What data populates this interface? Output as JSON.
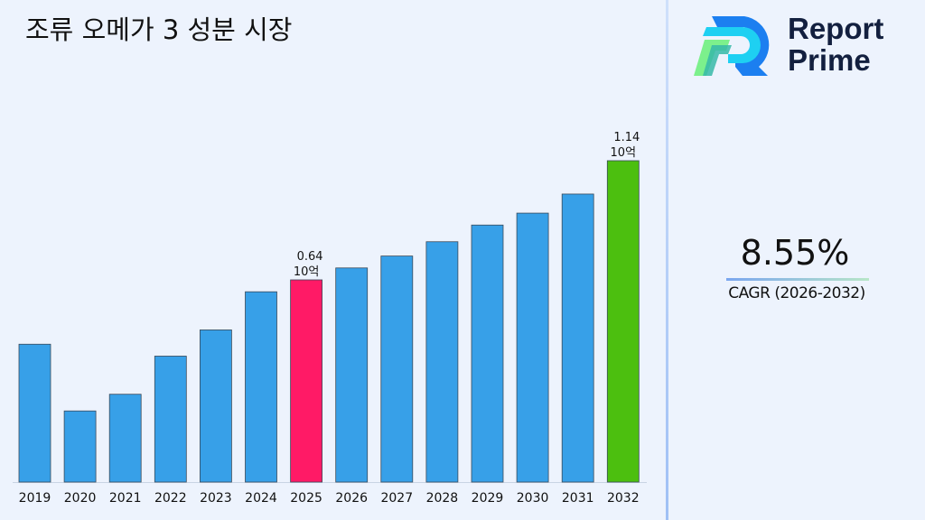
{
  "chart_data": {
    "type": "bar",
    "title": "조류 오메가 3 성분 시장",
    "categories": [
      "2019",
      "2020",
      "2021",
      "2022",
      "2023",
      "2024",
      "2025",
      "2026",
      "2027",
      "2028",
      "2029",
      "2030",
      "2031",
      "2032"
    ],
    "values": [
      0.37,
      0.09,
      0.16,
      0.32,
      0.43,
      0.59,
      0.64,
      0.69,
      0.74,
      0.8,
      0.87,
      0.92,
      1.0,
      1.14
    ],
    "unit": "10억",
    "data_labels": [
      {
        "category": "2025",
        "value": "0.64",
        "unit": "10억"
      },
      {
        "category": "2032",
        "value": "1.14",
        "unit": "10억"
      }
    ],
    "colors": {
      "default": "#37a0e8",
      "highlight_2025": "#ff1a66",
      "highlight_2032": "#4cbf0f"
    },
    "xlabel": "",
    "ylabel": "",
    "yaxis_visible": false,
    "grid": false
  },
  "cagr": {
    "value": "8.55%",
    "label": "CAGR (2026-2032)"
  },
  "brand": {
    "line1": "Report",
    "line2": "Prime"
  }
}
